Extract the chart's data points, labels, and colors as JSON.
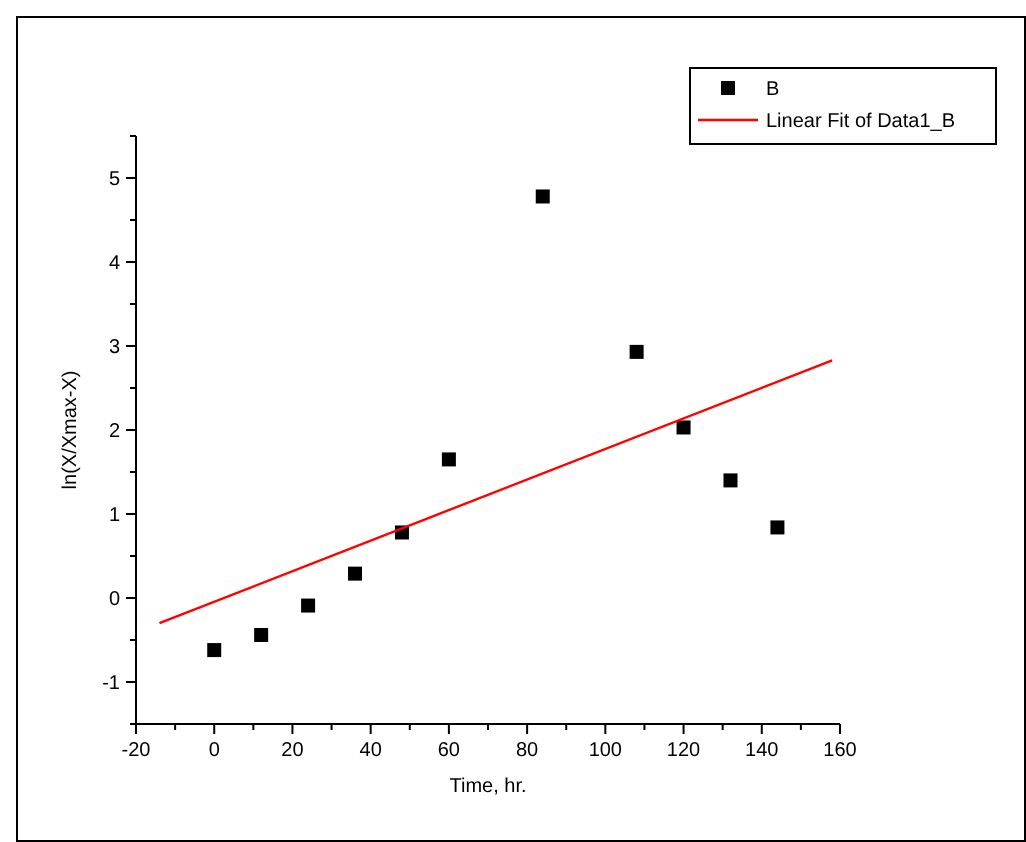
{
  "chart_data": {
    "type": "scatter",
    "xlabel": "Time, hr.",
    "ylabel": "ln(X/Xmax-X)",
    "xlim": [
      -20,
      160
    ],
    "ylim": [
      -1.5,
      5.5
    ],
    "xticks": [
      -20,
      {
        "value": -10,
        "label": null
      },
      0,
      {
        "value": 10,
        "label": null
      },
      20,
      {
        "value": 30,
        "label": null
      },
      40,
      {
        "value": 50,
        "label": null
      },
      60,
      {
        "value": 70,
        "label": null
      },
      80,
      {
        "value": 90,
        "label": null
      },
      100,
      {
        "value": 110,
        "label": null
      },
      120,
      {
        "value": 130,
        "label": null
      },
      140,
      {
        "value": 150,
        "label": null
      },
      160
    ],
    "yticks": [
      {
        "value": -1.5,
        "label": null
      },
      -1,
      {
        "value": -0.5,
        "label": null
      },
      0,
      {
        "value": 0.5,
        "label": null
      },
      1,
      {
        "value": 1.5,
        "label": null
      },
      2,
      {
        "value": 2.5,
        "label": null
      },
      3,
      {
        "value": 3.5,
        "label": null
      },
      4,
      {
        "value": 4.5,
        "label": null
      },
      5,
      {
        "value": 5.5,
        "label": null
      }
    ],
    "legend": "top right",
    "grid": false,
    "series": [
      {
        "name": "B",
        "marker": "square",
        "color": "#000000",
        "x": [
          0,
          12,
          24,
          36,
          48,
          60,
          84,
          108,
          120,
          132,
          144
        ],
        "values": [
          -0.62,
          -0.44,
          -0.09,
          0.29,
          0.78,
          1.65,
          4.78,
          2.93,
          2.03,
          1.4,
          0.84
        ]
      },
      {
        "name": "Linear Fit of Data1_B",
        "type": "line",
        "marker": "none",
        "color": "#ff0000",
        "x": [
          -14,
          158
        ],
        "values": [
          -0.3,
          2.83
        ]
      }
    ]
  }
}
